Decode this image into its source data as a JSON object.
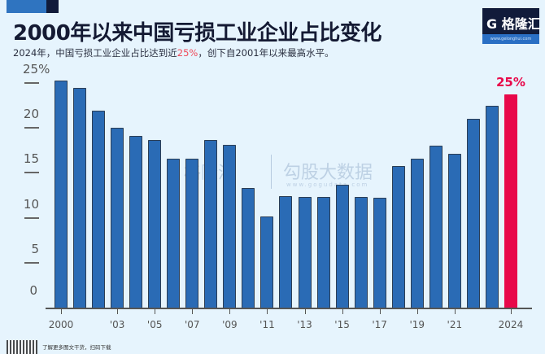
{
  "header": {
    "title": "2000年以来中国亏损工业企业占比变化",
    "subtitle_before": "2024年，中国亏损工业企业占比达到近",
    "subtitle_highlight": "25%",
    "subtitle_after": "，创下自2001年以来最高水平。"
  },
  "logo": {
    "name": "格隆汇",
    "url": "www.gelonghui.com"
  },
  "watermark": {
    "brand": "格隆汇",
    "name": "勾股大数据",
    "url": "www.gogudata.com"
  },
  "footer": {
    "text": "了解更多图文干货，扫码下载"
  },
  "colors": {
    "bar": "#2a6bb5",
    "highlight_bar": "#e8084a",
    "background": "#e6f4fd"
  },
  "chart_data": {
    "type": "bar",
    "title": "2000年以来中国亏损工业企业占比变化",
    "subtitle": "2024年，中国亏损工业企业占比达到近25%，创下自2001年以来最高水平。",
    "xlabel": "",
    "ylabel": "",
    "ylim": [
      0,
      25
    ],
    "yticks": [
      0,
      5,
      10,
      15,
      20,
      25
    ],
    "ytick_labels": [
      "0",
      "5",
      "10",
      "15",
      "20",
      "25%"
    ],
    "categories": [
      "2000",
      "2001",
      "2002",
      "2003",
      "2004",
      "2005",
      "2006",
      "2007",
      "2008",
      "2009",
      "2010",
      "2011",
      "2012",
      "2013",
      "2014",
      "2015",
      "2016",
      "2017",
      "2018",
      "2019",
      "2020",
      "2021",
      "2022",
      "2023",
      "2024"
    ],
    "xtick_labels": [
      {
        "index": 0,
        "label": "2000"
      },
      {
        "index": 3,
        "label": "'03"
      },
      {
        "index": 5,
        "label": "'05"
      },
      {
        "index": 7,
        "label": "'07"
      },
      {
        "index": 9,
        "label": "'09"
      },
      {
        "index": 11,
        "label": "'11"
      },
      {
        "index": 13,
        "label": "'13"
      },
      {
        "index": 15,
        "label": "'15"
      },
      {
        "index": 17,
        "label": "'17"
      },
      {
        "index": 19,
        "label": "'19"
      },
      {
        "index": 21,
        "label": "'21"
      },
      {
        "index": 24,
        "label": "2024"
      }
    ],
    "values": [
      25.3,
      24.5,
      21.9,
      20.0,
      19.1,
      18.7,
      16.6,
      16.6,
      18.7,
      18.1,
      13.3,
      10.1,
      12.4,
      12.3,
      12.3,
      13.7,
      12.3,
      12.2,
      15.8,
      16.6,
      18.0,
      17.1,
      21.0,
      22.5,
      23.7
    ],
    "highlight": {
      "index": 24,
      "label": "25%"
    },
    "grid": false,
    "legend": null
  }
}
